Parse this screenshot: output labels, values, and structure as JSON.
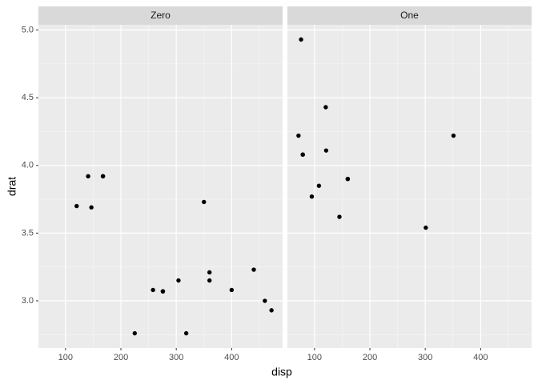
{
  "chart_data": {
    "type": "scatter",
    "x_label": "disp",
    "y_label": "drat",
    "xlim": [
      51.055,
      492.045
    ],
    "ylim": [
      2.6515,
      5.0385
    ],
    "xticks": [
      100,
      200,
      300,
      400
    ],
    "yticks": [
      {
        "value": 3,
        "label": "3.0"
      },
      3.5,
      {
        "value": 4,
        "label": "4.0"
      },
      4.5,
      {
        "value": 5,
        "label": "5.0"
      }
    ],
    "grid": true,
    "color": "#000000",
    "facets": [
      {
        "title": "Zero",
        "x": [
          258,
          360,
          225,
          360,
          146.7,
          140.8,
          167.6,
          167.6,
          275.8,
          275.8,
          275.8,
          472,
          460,
          440,
          120.1,
          318,
          304,
          350,
          400
        ],
        "y": [
          3.08,
          3.15,
          2.76,
          3.21,
          3.69,
          3.92,
          3.92,
          3.92,
          3.07,
          3.07,
          3.07,
          2.93,
          3.0,
          3.23,
          3.7,
          2.76,
          3.15,
          3.73,
          3.08
        ]
      },
      {
        "title": "One",
        "x": [
          160,
          160,
          108,
          78.7,
          75.7,
          71.1,
          79,
          120.3,
          95.1,
          351,
          145,
          301,
          121
        ],
        "y": [
          3.9,
          3.9,
          3.85,
          4.08,
          4.93,
          4.22,
          4.08,
          4.43,
          3.77,
          4.22,
          3.62,
          3.54,
          4.11
        ]
      }
    ]
  }
}
